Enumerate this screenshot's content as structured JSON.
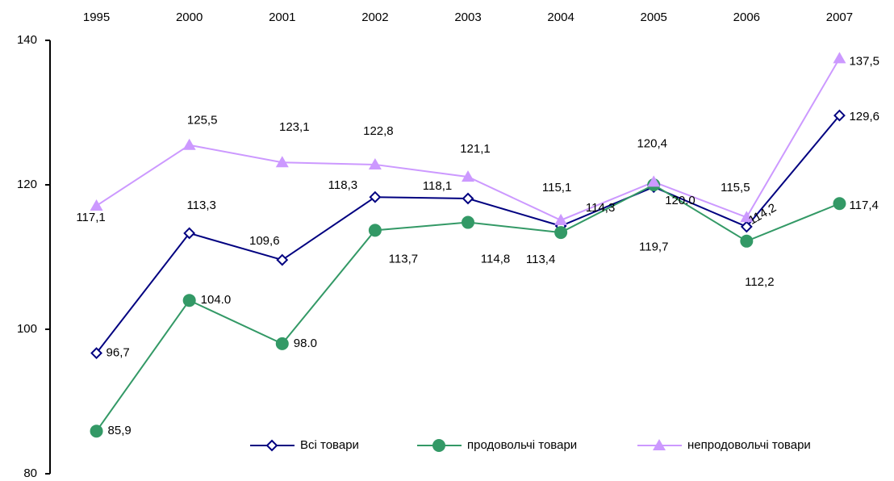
{
  "chart_data": {
    "type": "line",
    "categories": [
      "1995",
      "2000",
      "2001",
      "2002",
      "2003",
      "2004",
      "2005",
      "2006",
      "2007"
    ],
    "ylim": [
      80,
      140
    ],
    "yticks": [
      80,
      100,
      120,
      140
    ],
    "series": [
      {
        "name": "Всі товари",
        "color": "#000080",
        "marker": "diamond",
        "values": [
          96.7,
          113.3,
          109.6,
          118.3,
          118.1,
          114.3,
          119.7,
          114.2,
          129.6
        ],
        "value_labels": [
          "96,7",
          "113,3",
          "109,6",
          "118,3",
          "118,1",
          "114,3",
          "119,7",
          "114,2",
          "129,6"
        ]
      },
      {
        "name": "продовольчі товари",
        "color": "#339966",
        "marker": "circle",
        "values": [
          85.9,
          104.0,
          98.0,
          113.7,
          114.8,
          113.4,
          120.0,
          112.2,
          117.4
        ],
        "value_labels": [
          "85,9",
          "104.0",
          "98.0",
          "113,7",
          "114,8",
          "113,4",
          "120.0",
          "112,2",
          "117,4"
        ]
      },
      {
        "name": "непродовольчі товари",
        "color": "#cc99ff",
        "marker": "triangle",
        "values": [
          117.1,
          125.5,
          123.1,
          122.8,
          121.1,
          115.1,
          120.4,
          115.5,
          137.5
        ],
        "value_labels": [
          "117,1",
          "125,5",
          "123,1",
          "122,8",
          "121,1",
          "115,1",
          "120,4",
          "115,5",
          "137,5"
        ]
      }
    ],
    "legend": "bottom-right"
  }
}
